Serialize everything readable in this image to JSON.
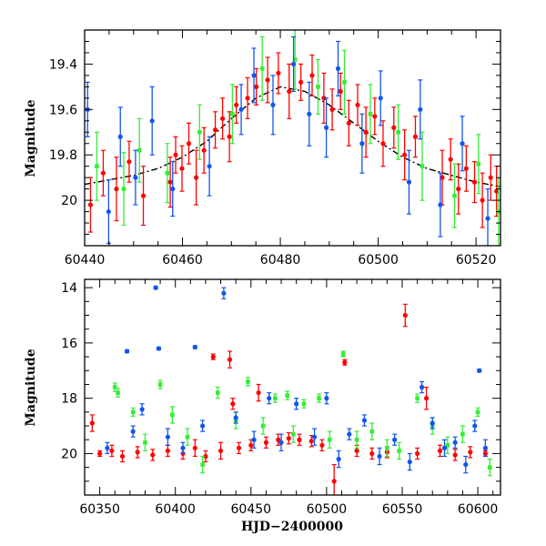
{
  "chart_data": [
    {
      "type": "scatter",
      "title": "",
      "xlabel": "",
      "ylabel": "Magnitude",
      "xlim": [
        60440,
        60525
      ],
      "ylim": [
        20.2,
        19.25
      ],
      "y_inverted": true,
      "x_ticks": [
        60440,
        60460,
        60480,
        60500,
        60520
      ],
      "x_tick_labels": [
        "60440",
        "60460",
        "60480",
        "60500",
        "60520"
      ],
      "y_ticks": [
        19.4,
        19.6,
        19.8,
        20
      ],
      "y_tick_labels": [
        "19.4",
        "19.6",
        "19.8",
        "20"
      ],
      "grid": false,
      "model_curve": {
        "color": "#000000",
        "x": [
          60440,
          60445,
          60450,
          60455,
          60460,
          60465,
          60470,
          60475,
          60480,
          60485,
          60490,
          60495,
          60500,
          60505,
          60510,
          60515,
          60520,
          60525
        ],
        "y": [
          19.93,
          19.91,
          19.89,
          19.86,
          19.81,
          19.74,
          19.64,
          19.55,
          19.5,
          19.52,
          19.58,
          19.66,
          19.74,
          19.81,
          19.86,
          19.89,
          19.92,
          19.94
        ]
      },
      "series": [
        {
          "color": "#ff0000",
          "points": [
            [
              60441.2,
              20.02,
              0.12
            ],
            [
              60443.8,
              19.88,
              0.1
            ],
            [
              60446.5,
              19.95,
              0.14
            ],
            [
              60449.1,
              19.83,
              0.09
            ],
            [
              60452.0,
              19.98,
              0.13
            ],
            [
              60457.5,
              19.92,
              0.11
            ],
            [
              60458.6,
              19.8,
              0.08
            ],
            [
              60459.9,
              19.86,
              0.1
            ],
            [
              60461.3,
              19.75,
              0.09
            ],
            [
              60462.8,
              19.9,
              0.12
            ],
            [
              60464.4,
              19.78,
              0.1
            ],
            [
              60466.7,
              19.69,
              0.08
            ],
            [
              60468.2,
              19.64,
              0.09
            ],
            [
              60469.6,
              19.72,
              0.11
            ],
            [
              60471.0,
              19.58,
              0.08
            ],
            [
              60473.3,
              19.55,
              0.09
            ],
            [
              60475.1,
              19.5,
              0.08
            ],
            [
              60477.4,
              19.47,
              0.1
            ],
            [
              60479.6,
              19.44,
              0.09
            ],
            [
              60481.8,
              19.52,
              0.12
            ],
            [
              60484.2,
              19.48,
              0.08
            ],
            [
              60486.5,
              19.45,
              0.09
            ],
            [
              60488.9,
              19.55,
              0.11
            ],
            [
              60490.6,
              19.6,
              0.09
            ],
            [
              60492.3,
              19.52,
              0.08
            ],
            [
              60494.0,
              19.66,
              0.1
            ],
            [
              60495.8,
              19.58,
              0.09
            ],
            [
              60497.5,
              19.7,
              0.11
            ],
            [
              60499.3,
              19.63,
              0.08
            ],
            [
              60501.0,
              19.75,
              0.1
            ],
            [
              60503.2,
              19.68,
              0.09
            ],
            [
              60505.4,
              19.8,
              0.11
            ],
            [
              60507.6,
              19.72,
              0.09
            ],
            [
              60513.1,
              19.9,
              0.12
            ],
            [
              60514.8,
              19.82,
              0.09
            ],
            [
              60516.4,
              19.95,
              0.11
            ],
            [
              60518.0,
              19.86,
              0.1
            ],
            [
              60519.7,
              19.92,
              0.09
            ],
            [
              60521.3,
              20.0,
              0.12
            ],
            [
              60523.0,
              19.9,
              0.1
            ],
            [
              60524.2,
              19.96,
              0.11
            ]
          ]
        },
        {
          "color": "#33ee33",
          "points": [
            [
              60442.5,
              19.85,
              0.15
            ],
            [
              60448.0,
              19.95,
              0.16
            ],
            [
              60451.2,
              19.78,
              0.14
            ],
            [
              60456.9,
              19.88,
              0.13
            ],
            [
              60463.5,
              19.7,
              0.12
            ],
            [
              60470.2,
              19.62,
              0.13
            ],
            [
              60476.3,
              19.42,
              0.14
            ],
            [
              60483.0,
              19.38,
              0.13
            ],
            [
              60487.7,
              19.5,
              0.12
            ],
            [
              60493.1,
              19.48,
              0.14
            ],
            [
              60498.4,
              19.62,
              0.13
            ],
            [
              60504.1,
              19.7,
              0.12
            ],
            [
              60509.0,
              19.85,
              0.15
            ],
            [
              60515.6,
              19.98,
              0.14
            ],
            [
              60520.5,
              19.84,
              0.13
            ],
            [
              60524.6,
              20.05,
              0.15
            ]
          ]
        },
        {
          "color": "#1155ee",
          "points": [
            [
              60440.6,
              19.6,
              0.12
            ],
            [
              60444.9,
              20.05,
              0.14
            ],
            [
              60447.3,
              19.72,
              0.13
            ],
            [
              60450.4,
              19.9,
              0.12
            ],
            [
              60453.8,
              19.65,
              0.15
            ],
            [
              60458.0,
              19.95,
              0.12
            ],
            [
              60465.5,
              19.85,
              0.13
            ],
            [
              60472.0,
              19.6,
              0.11
            ],
            [
              60474.6,
              19.45,
              0.12
            ],
            [
              60478.5,
              19.58,
              0.13
            ],
            [
              60482.7,
              19.4,
              0.12
            ],
            [
              60485.9,
              19.62,
              0.14
            ],
            [
              60489.4,
              19.68,
              0.13
            ],
            [
              60491.8,
              19.42,
              0.12
            ],
            [
              60496.7,
              19.75,
              0.13
            ],
            [
              60500.5,
              19.55,
              0.12
            ],
            [
              60506.3,
              19.92,
              0.14
            ],
            [
              60508.6,
              19.6,
              0.13
            ],
            [
              60512.7,
              20.02,
              0.14
            ],
            [
              60517.2,
              19.75,
              0.12
            ],
            [
              60522.4,
              20.08,
              0.13
            ]
          ]
        }
      ]
    },
    {
      "type": "scatter",
      "title": "",
      "xlabel": "HJD−2400000",
      "ylabel": "Magnitude",
      "xlim": [
        60340,
        60615
      ],
      "ylim": [
        21.5,
        13.7
      ],
      "y_inverted": true,
      "x_ticks": [
        60350,
        60400,
        60450,
        60500,
        60550,
        60600
      ],
      "x_tick_labels": [
        "60350",
        "60400",
        "60450",
        "60500",
        "60550",
        "60600"
      ],
      "y_ticks": [
        14,
        16,
        18,
        20
      ],
      "y_tick_labels": [
        "14",
        "16",
        "18",
        "20"
      ],
      "grid": false,
      "series": [
        {
          "color": "#ff0000",
          "points": [
            [
              60345,
              18.9,
              0.3
            ],
            [
              60350,
              20.0,
              0.1
            ],
            [
              60358,
              19.9,
              0.2
            ],
            [
              60365,
              20.1,
              0.2
            ],
            [
              60375,
              19.95,
              0.2
            ],
            [
              60385,
              20.05,
              0.2
            ],
            [
              60395,
              19.9,
              0.2
            ],
            [
              60405,
              20.0,
              0.2
            ],
            [
              60413,
              19.8,
              0.3
            ],
            [
              60420,
              20.1,
              0.2
            ],
            [
              60425,
              16.5,
              0.1
            ],
            [
              60430,
              19.9,
              0.3
            ],
            [
              60436,
              16.6,
              0.3
            ],
            [
              60438,
              18.2,
              0.2
            ],
            [
              60442,
              19.8,
              0.2
            ],
            [
              60450,
              19.7,
              0.2
            ],
            [
              60455,
              17.8,
              0.3
            ],
            [
              60460,
              19.6,
              0.2
            ],
            [
              60468,
              19.5,
              0.2
            ],
            [
              60475,
              19.45,
              0.2
            ],
            [
              60482,
              19.5,
              0.2
            ],
            [
              60490,
              19.55,
              0.2
            ],
            [
              60497,
              19.7,
              0.2
            ],
            [
              60505,
              21.0,
              0.6
            ],
            [
              60512,
              16.7,
              0.1
            ],
            [
              60520,
              19.9,
              0.2
            ],
            [
              60530,
              20.0,
              0.2
            ],
            [
              60540,
              19.95,
              0.2
            ],
            [
              60552,
              15.0,
              0.4
            ],
            [
              60560,
              20.0,
              0.2
            ],
            [
              60566,
              18.0,
              0.4
            ],
            [
              60575,
              19.9,
              0.2
            ],
            [
              60585,
              20.05,
              0.2
            ],
            [
              60595,
              19.95,
              0.2
            ],
            [
              60605,
              20.0,
              0.1
            ]
          ]
        },
        {
          "color": "#33ee33",
          "points": [
            [
              60360,
              17.6,
              0.15
            ],
            [
              60362,
              17.8,
              0.15
            ],
            [
              60372,
              18.5,
              0.15
            ],
            [
              60380,
              19.6,
              0.3
            ],
            [
              60390,
              17.5,
              0.15
            ],
            [
              60398,
              18.6,
              0.3
            ],
            [
              60408,
              19.4,
              0.3
            ],
            [
              60418,
              20.4,
              0.3
            ],
            [
              60428,
              17.8,
              0.2
            ],
            [
              60440,
              18.8,
              0.3
            ],
            [
              60448,
              17.4,
              0.15
            ],
            [
              60458,
              19.0,
              0.3
            ],
            [
              60466,
              18.0,
              0.15
            ],
            [
              60474,
              17.9,
              0.15
            ],
            [
              60478,
              19.3,
              0.3
            ],
            [
              60485,
              18.2,
              0.15
            ],
            [
              60495,
              18.0,
              0.15
            ],
            [
              60502,
              19.5,
              0.3
            ],
            [
              60511,
              16.4,
              0.1
            ],
            [
              60520,
              19.5,
              0.3
            ],
            [
              60530,
              19.2,
              0.3
            ],
            [
              60540,
              19.8,
              0.3
            ],
            [
              60548,
              19.9,
              0.3
            ],
            [
              60560,
              18.0,
              0.15
            ],
            [
              60570,
              19.0,
              0.3
            ],
            [
              60580,
              19.7,
              0.3
            ],
            [
              60590,
              19.3,
              0.3
            ],
            [
              60600,
              18.5,
              0.15
            ],
            [
              60608,
              20.5,
              0.3
            ]
          ]
        },
        {
          "color": "#1155ee",
          "points": [
            [
              60355,
              19.8,
              0.2
            ],
            [
              60368,
              16.3,
              0.05
            ],
            [
              60372,
              19.2,
              0.2
            ],
            [
              60378,
              18.4,
              0.2
            ],
            [
              60387,
              14.0,
              0.05
            ],
            [
              60389,
              16.2,
              0.05
            ],
            [
              60395,
              19.4,
              0.3
            ],
            [
              60405,
              19.8,
              0.2
            ],
            [
              60413,
              16.15,
              0.05
            ],
            [
              60418,
              19.0,
              0.2
            ],
            [
              60432,
              14.2,
              0.2
            ],
            [
              60440,
              18.7,
              0.2
            ],
            [
              60452,
              19.5,
              0.3
            ],
            [
              60462,
              18.0,
              0.2
            ],
            [
              60470,
              19.6,
              0.3
            ],
            [
              60480,
              18.2,
              0.2
            ],
            [
              60492,
              19.4,
              0.3
            ],
            [
              60500,
              18.0,
              0.2
            ],
            [
              60508,
              20.2,
              0.3
            ],
            [
              60515,
              19.3,
              0.2
            ],
            [
              60525,
              18.8,
              0.2
            ],
            [
              60535,
              20.1,
              0.3
            ],
            [
              60545,
              19.5,
              0.2
            ],
            [
              60555,
              20.3,
              0.3
            ],
            [
              60563,
              17.6,
              0.2
            ],
            [
              60570,
              18.9,
              0.2
            ],
            [
              60578,
              19.8,
              0.3
            ],
            [
              60585,
              19.6,
              0.2
            ],
            [
              60592,
              20.4,
              0.3
            ],
            [
              60598,
              19.0,
              0.2
            ],
            [
              60601,
              17.0,
              0.05
            ],
            [
              60605,
              19.8,
              0.3
            ]
          ]
        }
      ]
    }
  ]
}
